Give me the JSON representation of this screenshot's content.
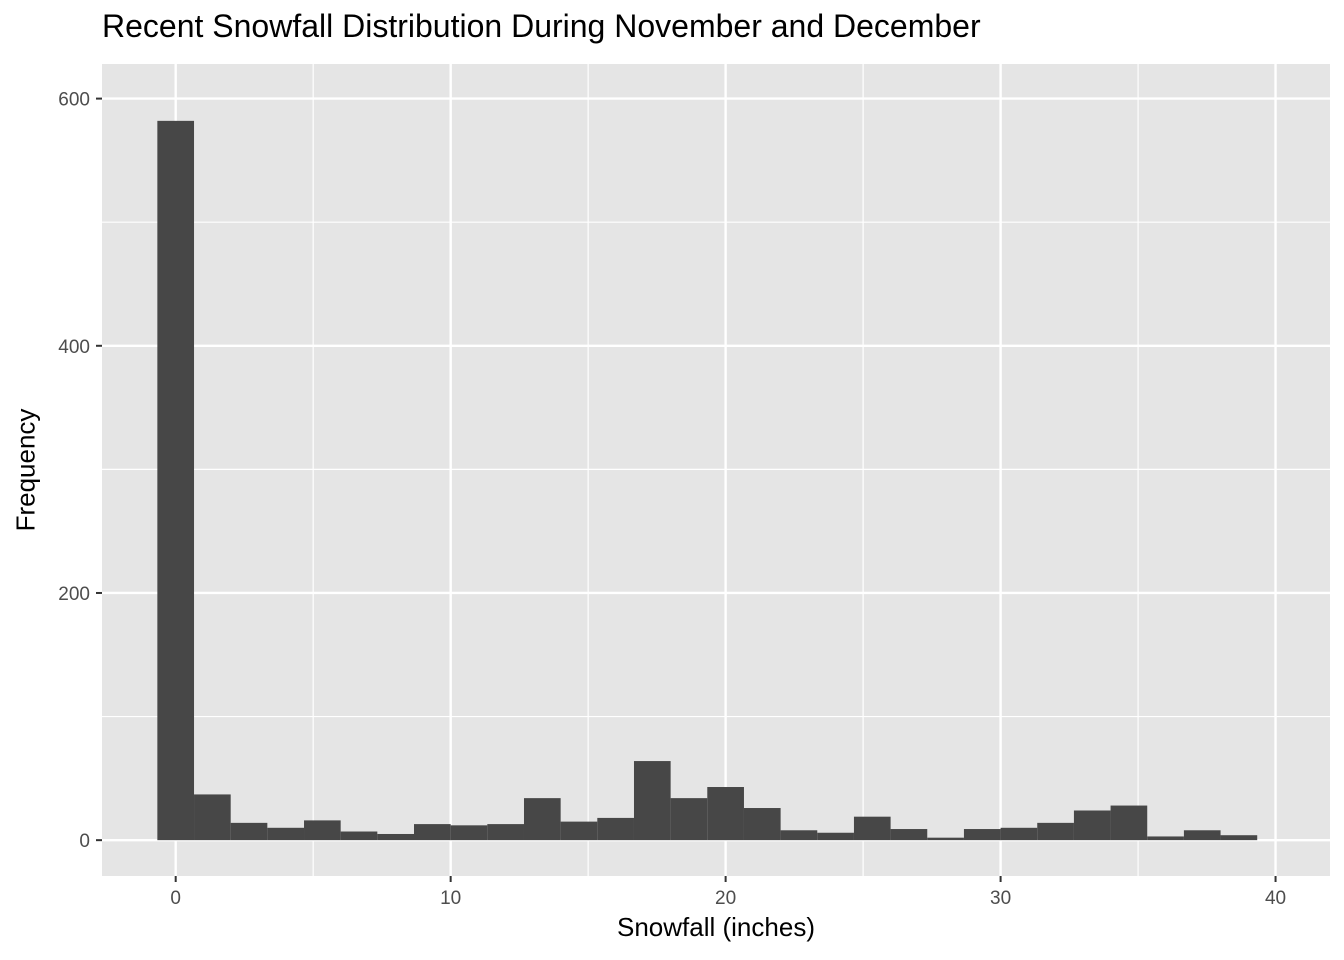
{
  "chart_data": {
    "type": "bar",
    "title": "Recent Snowfall Distribution During November and December",
    "xlabel": "Snowfall (inches)",
    "ylabel": "Frequency",
    "xlim": [
      -2.68,
      41.98
    ],
    "ylim": [
      -29,
      628
    ],
    "x_ticks": [
      0,
      10,
      20,
      30,
      40
    ],
    "x_tick_labels": [
      "0",
      "10",
      "20",
      "30",
      "40"
    ],
    "y_ticks": [
      0,
      200,
      400,
      600
    ],
    "y_tick_labels": [
      "0",
      "200",
      "400",
      "600"
    ],
    "grid": true,
    "bin_width": 1.3333,
    "bins": [
      {
        "x0": -0.667,
        "x1": 0.667,
        "value": 582
      },
      {
        "x0": 0.667,
        "x1": 2.0,
        "value": 37
      },
      {
        "x0": 2.0,
        "x1": 3.333,
        "value": 14
      },
      {
        "x0": 3.333,
        "x1": 4.667,
        "value": 10
      },
      {
        "x0": 4.667,
        "x1": 6.0,
        "value": 16
      },
      {
        "x0": 6.0,
        "x1": 7.333,
        "value": 7
      },
      {
        "x0": 7.333,
        "x1": 8.667,
        "value": 5
      },
      {
        "x0": 8.667,
        "x1": 10.0,
        "value": 13
      },
      {
        "x0": 10.0,
        "x1": 11.333,
        "value": 12
      },
      {
        "x0": 11.333,
        "x1": 12.667,
        "value": 13
      },
      {
        "x0": 12.667,
        "x1": 14.0,
        "value": 34
      },
      {
        "x0": 14.0,
        "x1": 15.333,
        "value": 15
      },
      {
        "x0": 15.333,
        "x1": 16.667,
        "value": 18
      },
      {
        "x0": 16.667,
        "x1": 18.0,
        "value": 64
      },
      {
        "x0": 18.0,
        "x1": 19.333,
        "value": 34
      },
      {
        "x0": 19.333,
        "x1": 20.667,
        "value": 43
      },
      {
        "x0": 20.667,
        "x1": 22.0,
        "value": 26
      },
      {
        "x0": 22.0,
        "x1": 23.333,
        "value": 8
      },
      {
        "x0": 23.333,
        "x1": 24.667,
        "value": 6
      },
      {
        "x0": 24.667,
        "x1": 26.0,
        "value": 19
      },
      {
        "x0": 26.0,
        "x1": 27.333,
        "value": 9
      },
      {
        "x0": 27.333,
        "x1": 28.667,
        "value": 2
      },
      {
        "x0": 28.667,
        "x1": 30.0,
        "value": 9
      },
      {
        "x0": 30.0,
        "x1": 31.333,
        "value": 10
      },
      {
        "x0": 31.333,
        "x1": 32.667,
        "value": 14
      },
      {
        "x0": 32.667,
        "x1": 34.0,
        "value": 24
      },
      {
        "x0": 34.0,
        "x1": 35.333,
        "value": 28
      },
      {
        "x0": 35.333,
        "x1": 36.667,
        "value": 3
      },
      {
        "x0": 36.667,
        "x1": 38.0,
        "value": 8
      },
      {
        "x0": 38.0,
        "x1": 39.333,
        "value": 4
      }
    ],
    "colors": {
      "panel": "#e5e5e5",
      "grid_major": "#ffffff",
      "bar_fill": "#474747",
      "tick_text": "#4d4d4d",
      "tick_mark": "#333333"
    }
  }
}
